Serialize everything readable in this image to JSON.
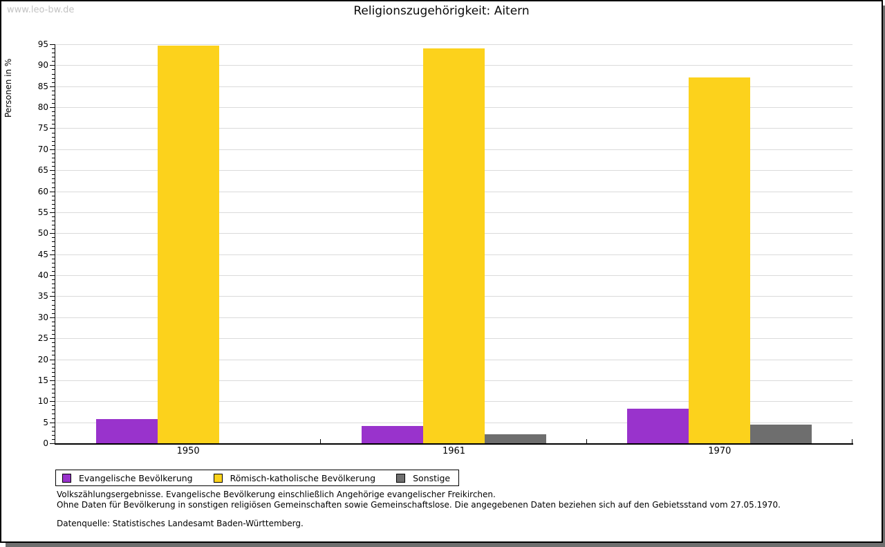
{
  "watermark": "www.leo-bw.de",
  "header": {
    "title": "Religionszugehörigkeit: Aitern"
  },
  "chart_data": {
    "type": "bar",
    "title": "Religionszugehörigkeit: Aitern",
    "ylabel": "Personen in %",
    "ylim": [
      0,
      95
    ],
    "y_major_step": 5,
    "y_minor_step": 1,
    "grid": true,
    "legend_position": "bottom-left",
    "categories": [
      "1950",
      "1961",
      "1970"
    ],
    "series": [
      {
        "name": "Evangelische Bevölkerung",
        "color": "#9933cc",
        "values": [
          5.7,
          4.2,
          8.3
        ]
      },
      {
        "name": "Römisch-katholische Bevölkerung",
        "color": "#fcd21c",
        "values": [
          94.7,
          94.0,
          87.1
        ]
      },
      {
        "name": "Sonstige",
        "color": "#6e6e6e",
        "values": [
          0,
          2.1,
          4.5
        ]
      }
    ]
  },
  "footnotes": [
    "Volkszählungsergebnisse. Evangelische Bevölkerung einschließlich Angehörige evangelischer Freikirchen.",
    "Ohne Daten für Bevölkerung in sonstigen religiösen Gemeinschaften sowie Gemeinschaftslose. Die angegebenen Daten beziehen sich auf den Gebietsstand vom 27.05.1970."
  ],
  "source": "Datenquelle: Statistisches Landesamt Baden-Württemberg."
}
